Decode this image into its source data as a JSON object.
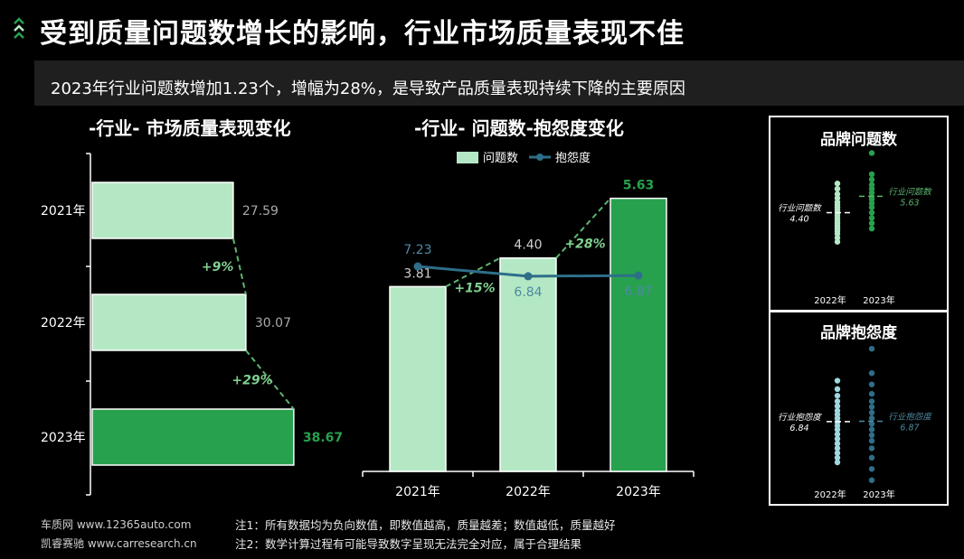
{
  "header": {
    "title": "受到质量问题数增长的影响，行业市场质量表现不佳",
    "subtitle": "2023年行业问题数增加1.23个，增幅为28%，是导致产品质量表现持续下降的主要原因"
  },
  "colors": {
    "light": "#b4e8c4",
    "dark": "#27a14e",
    "line": "#2e6e89",
    "dashed": "#5bb56f"
  },
  "chart_data": [
    {
      "type": "bar",
      "orientation": "horizontal",
      "title": "-行业-  市场质量表现变化",
      "categories": [
        "2021年",
        "2022年",
        "2023年"
      ],
      "values": [
        27.59,
        30.07,
        38.67
      ],
      "value_labels": [
        "27.59",
        "30.07",
        "38.67"
      ],
      "changes": [
        "+9%",
        "+29%"
      ],
      "xlim": [
        0,
        40
      ]
    },
    {
      "type": "bar",
      "title": "-行业- 问题数-抱怨度变化",
      "categories": [
        "2021年",
        "2022年",
        "2023年"
      ],
      "legend": [
        "问题数",
        "抱怨度"
      ],
      "series": [
        {
          "name": "问题数",
          "type": "bar",
          "values": [
            3.81,
            4.4,
            5.63
          ],
          "labels": [
            "3.81",
            "4.40",
            "5.63"
          ]
        },
        {
          "name": "抱怨度",
          "type": "line",
          "values": [
            7.23,
            6.84,
            6.87
          ],
          "labels": [
            "7.23",
            "6.84",
            "6.87"
          ]
        }
      ],
      "changes": [
        "+15%",
        "+28%"
      ],
      "ylim": [
        0,
        6.2
      ],
      "line_ylim": [
        0,
        12
      ]
    },
    {
      "type": "scatter",
      "title": "品牌问题数",
      "categories": [
        "2022年",
        "2023年"
      ],
      "ylim": [
        0,
        9
      ],
      "series": [
        {
          "name": "2022年",
          "values": [
            2.2,
            2.5,
            2.8,
            3.0,
            3.2,
            3.4,
            3.6,
            3.8,
            4.0,
            4.2,
            4.4,
            4.6,
            4.8,
            5.0,
            5.2,
            5.5,
            5.8,
            6.2,
            6.6
          ]
        },
        {
          "name": "2023年",
          "values": [
            3.2,
            3.6,
            4.0,
            4.4,
            4.8,
            5.1,
            5.4,
            5.6,
            5.9,
            6.2,
            6.5,
            6.9,
            7.3,
            8.9
          ]
        }
      ],
      "reference": [
        {
          "label": "行业问题数",
          "value": 4.4,
          "value_label": "4.40"
        },
        {
          "label": "行业问题数",
          "value": 5.63,
          "value_label": "5.63"
        }
      ]
    },
    {
      "type": "scatter",
      "title": "品牌抱怨度",
      "categories": [
        "2022年",
        "2023年"
      ],
      "ylim": [
        0,
        15
      ],
      "series": [
        {
          "name": "2022年",
          "values": [
            2.5,
            3.0,
            3.5,
            4.0,
            4.5,
            5.0,
            5.5,
            6.0,
            6.4,
            6.8,
            7.2,
            7.6,
            8.0,
            8.5,
            9.0,
            9.6,
            10.3,
            11.2
          ]
        },
        {
          "name": "2023年",
          "values": [
            0.6,
            1.8,
            3.0,
            4.0,
            4.8,
            5.4,
            6.0,
            6.6,
            7.2,
            7.8,
            8.4,
            9.0,
            9.8,
            10.8,
            12.0,
            14.6
          ]
        }
      ],
      "reference": [
        {
          "label": "行业抱怨度",
          "value": 6.84,
          "value_label": "6.84"
        },
        {
          "label": "行业抱怨度",
          "value": 6.87,
          "value_label": "6.87"
        }
      ]
    }
  ],
  "footer": {
    "source1": "车质网 www.12365auto.com",
    "source2": "凯睿赛驰 www.carresearch.cn",
    "note1": "注1：所有数据均为负向数值，即数值越高，质量越差；数值越低，质量越好",
    "note2": "注2：数学计算过程有可能导致数字呈现无法完全对应，属于合理结果"
  }
}
